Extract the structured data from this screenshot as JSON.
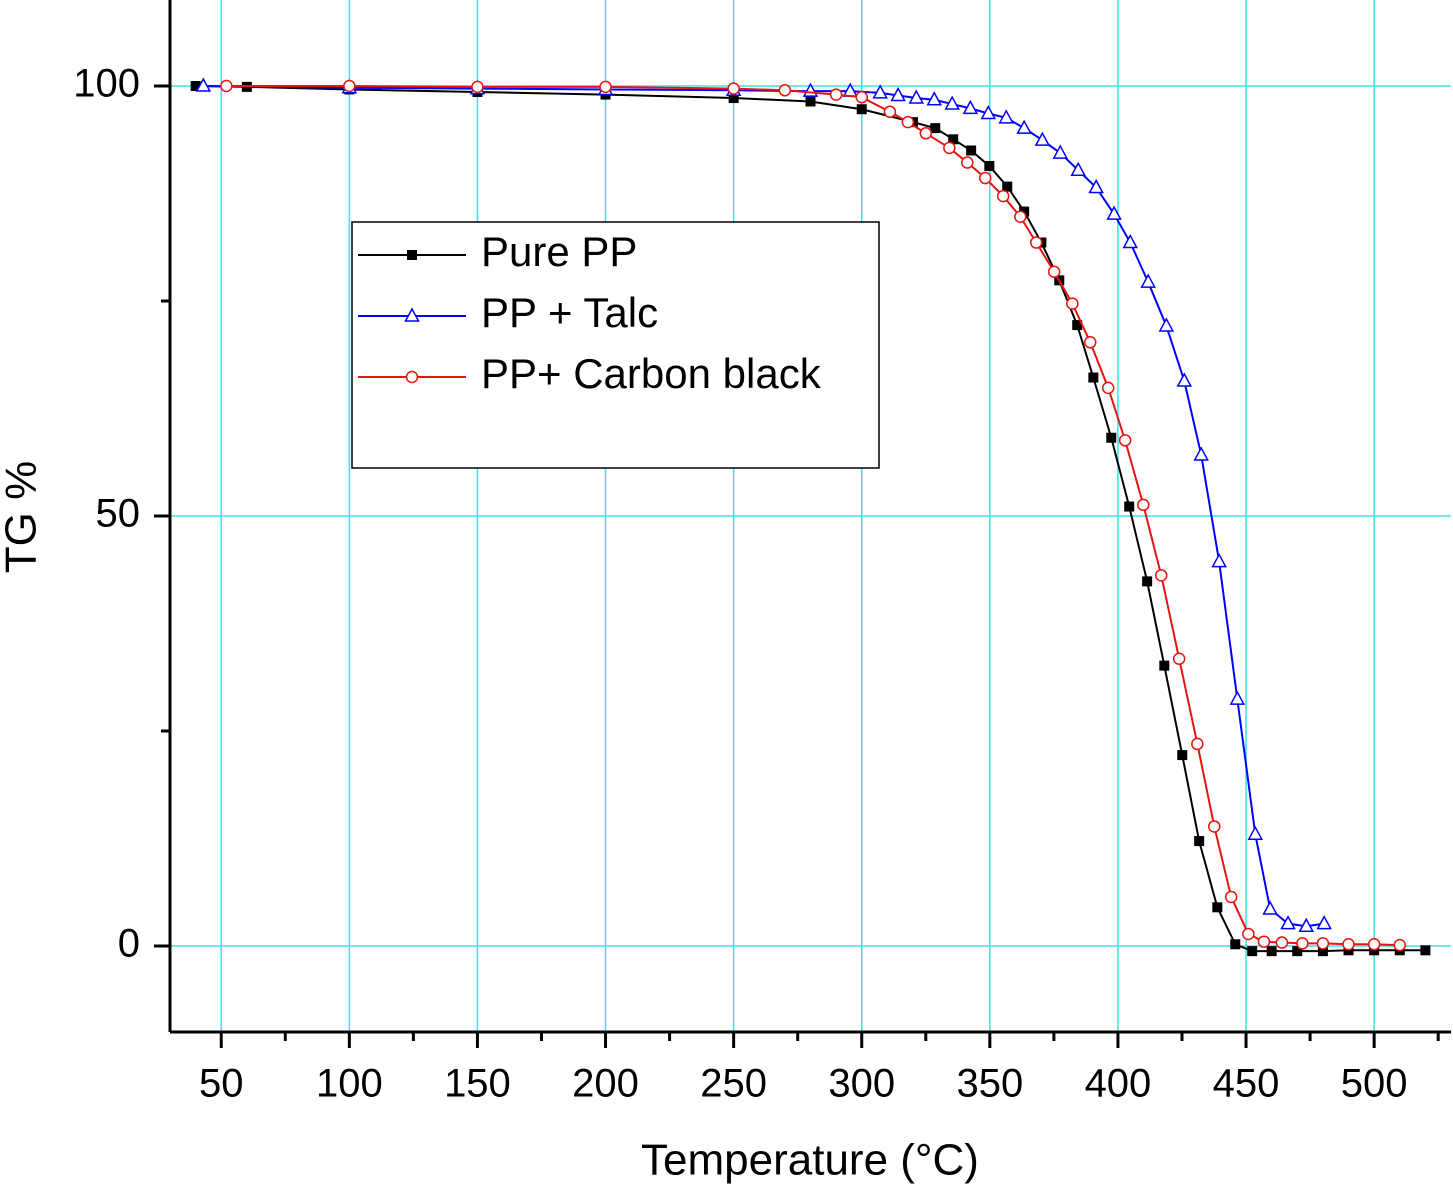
{
  "chart_data": {
    "type": "line",
    "xlabel": "Temperature (°C)",
    "ylabel": "TG %",
    "xlim": [
      30,
      530
    ],
    "ylim": [
      -10,
      110
    ],
    "xticks": [
      50,
      100,
      150,
      200,
      250,
      300,
      350,
      400,
      450,
      500
    ],
    "xticks_minor": [
      75,
      125,
      175,
      225,
      275,
      325,
      375,
      425,
      475,
      525
    ],
    "yticks": [
      0,
      50,
      100
    ],
    "yticks_minor": [
      25,
      75
    ],
    "grid": true,
    "grid_color": "#40e0e8",
    "legend": "upper left",
    "series": [
      {
        "name": "Pure PP",
        "color": "#000000",
        "marker": "square",
        "x": [
          40,
          60,
          100,
          150,
          200,
          250,
          280,
          300,
          320,
          328.7,
          335.7,
          342.7,
          349.8,
          356.8,
          363.4,
          370.1,
          377.1,
          384.1,
          390.4,
          397.4,
          404.4,
          411.4,
          418.1,
          425.1,
          431.7,
          438.8,
          445.8,
          452.4,
          460,
          470,
          480,
          490,
          500,
          510,
          520
        ],
        "values": [
          100,
          99.9,
          99.6,
          99.3,
          99.0,
          98.6,
          98.2,
          97.3,
          95.8,
          95.1,
          93.8,
          92.5,
          90.7,
          88.3,
          85.4,
          81.8,
          77.4,
          72.2,
          66.1,
          59.1,
          51.1,
          42.4,
          32.6,
          22.2,
          12.2,
          4.5,
          0.2,
          -0.6,
          -0.6,
          -0.6,
          -0.6,
          -0.5,
          -0.5,
          -0.5,
          -0.5
        ]
      },
      {
        "name": "PP + Talc",
        "color": "#0000ff",
        "marker": "triangle",
        "x": [
          43,
          100,
          150,
          200,
          250,
          280,
          295.5,
          307.2,
          314.2,
          321.3,
          328.3,
          335.3,
          342.4,
          349.4,
          356.4,
          363.4,
          370.5,
          377.5,
          384.5,
          391.5,
          398.5,
          404.8,
          411.8,
          418.9,
          425.9,
          432.5,
          439.5,
          446.6,
          453.6,
          459.4,
          466.4,
          473.5,
          480.5
        ],
        "values": [
          100,
          99.8,
          99.7,
          99.6,
          99.5,
          99.4,
          99.4,
          99.2,
          98.9,
          98.6,
          98.4,
          97.9,
          97.4,
          96.8,
          96.3,
          95.1,
          93.7,
          92.2,
          90.2,
          88.2,
          85.1,
          81.8,
          77.2,
          72.1,
          65.7,
          57.1,
          44.7,
          28.7,
          13.0,
          4.3,
          2.6,
          2.3,
          2.6
        ]
      },
      {
        "name": "PP+ Carbon black",
        "color": "#e8140f",
        "marker": "circle",
        "x": [
          52,
          100,
          150,
          200,
          250,
          270,
          290,
          300,
          311,
          318,
          325,
          334.2,
          341.2,
          348.2,
          355.2,
          361.9,
          368.1,
          375.1,
          382.2,
          389.2,
          396.2,
          402.8,
          409.9,
          416.9,
          423.9,
          431,
          437.6,
          444.2,
          450.9,
          457,
          464,
          472,
          480,
          490,
          500,
          510
        ],
        "values": [
          100,
          100,
          99.9,
          99.9,
          99.7,
          99.5,
          99.0,
          98.7,
          97.0,
          95.8,
          94.5,
          92.8,
          91.1,
          89.3,
          87.2,
          84.8,
          81.8,
          78.4,
          74.7,
          70.2,
          64.9,
          58.8,
          51.3,
          43.1,
          33.4,
          23.5,
          13.9,
          5.7,
          1.4,
          0.5,
          0.4,
          0.3,
          0.3,
          0.2,
          0.2,
          0.1
        ]
      }
    ]
  }
}
